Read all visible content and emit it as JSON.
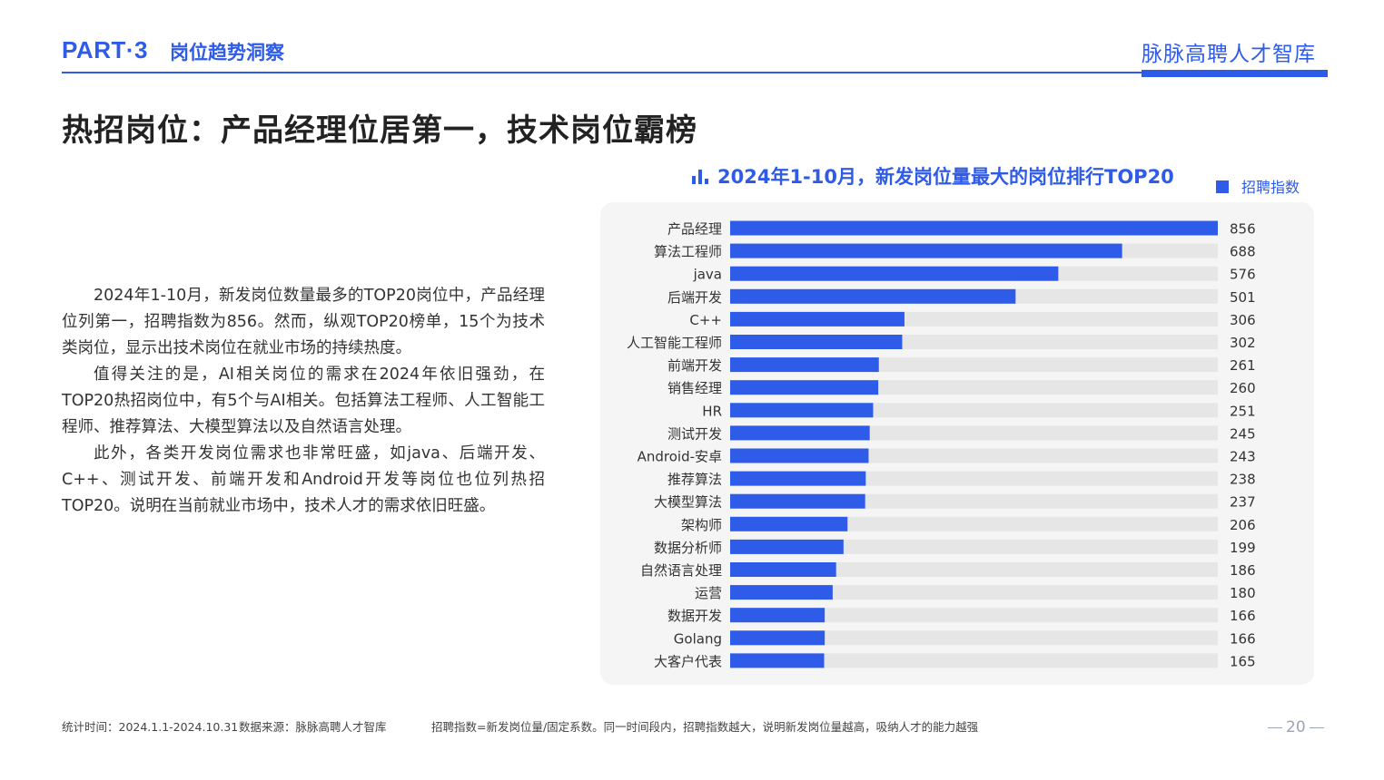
{
  "header": {
    "part": "PART·3",
    "section": "岗位趋势洞察",
    "brand": "脉脉高聘人才智库"
  },
  "page_title": "热招岗位：产品经理位居第一，技术岗位霸榜",
  "body": {
    "paragraphs": [
      "2024年1-10月，新发岗位数量最多的TOP20岗位中，产品经理位列第一，招聘指数为856。然而，纵观TOP20榜单，15个为技术类岗位，显示出技术岗位在就业市场的持续热度。",
      "值得关注的是，AI相关岗位的需求在2024年依旧强劲，在TOP20热招岗位中，有5个与AI相关。包括算法工程师、人工智能工程师、推荐算法、大模型算法以及自然语言处理。",
      "此外，各类开发岗位需求也非常旺盛，如java、后端开发、C++、测试开发、前端开发和Android开发等岗位也位列热招TOP20。说明在当前就业市场中，技术人才的需求依旧旺盛。"
    ]
  },
  "chart_data": {
    "type": "bar",
    "orientation": "horizontal",
    "title": "2024年1-10月，新发岗位量最大的岗位排行TOP20",
    "categories": [
      "产品经理",
      "算法工程师",
      "java",
      "后端开发",
      "C++",
      "人工智能工程师",
      "前端开发",
      "销售经理",
      "HR",
      "测试开发",
      "Android-安卓",
      "推荐算法",
      "大模型算法",
      "架构师",
      "数据分析师",
      "自然语言处理",
      "运营",
      "数据开发",
      "Golang",
      "大客户代表"
    ],
    "series": [
      {
        "name": "招聘指数",
        "values": [
          856,
          688,
          576,
          501,
          306,
          302,
          261,
          260,
          251,
          245,
          243,
          238,
          237,
          206,
          199,
          186,
          180,
          166,
          166,
          165
        ]
      }
    ],
    "xlim": [
      0,
      856
    ],
    "legend_position": "top-right",
    "grid": false,
    "colors": {
      "bar": "#2f5be9",
      "track": "#e6e6e6"
    }
  },
  "footer": {
    "period": "统计时间：2024.1.1-2024.10.31",
    "source": "数据来源：脉脉高聘人才智库",
    "note": "招聘指数=新发岗位量/固定系数。同一时间段内，招聘指数越大，说明新发岗位量越高，吸纳人才的能力越强",
    "page_number": "20"
  },
  "colors": {
    "accent": "#2f5be9",
    "title": "#222222",
    "panel": "#f5f5f5"
  }
}
